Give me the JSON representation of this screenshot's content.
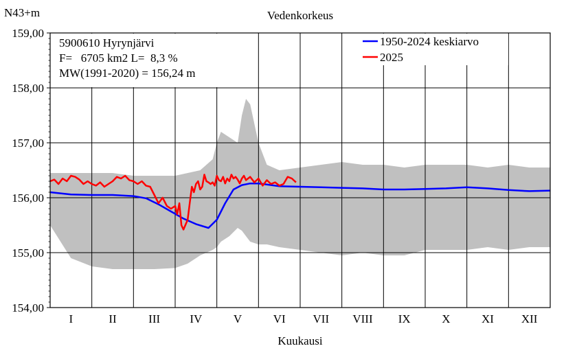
{
  "chart_data": {
    "type": "line",
    "title": "Vedenkorkeus",
    "ylabel": "N43+m",
    "xlabel": "Kuukausi",
    "ylim": [
      154,
      159
    ],
    "yticks": [
      154,
      155,
      156,
      157,
      158,
      159
    ],
    "ytick_labels": [
      "154,00",
      "155,00",
      "156,00",
      "157,00",
      "158,00",
      "159,00"
    ],
    "x_unit": "month",
    "xlim": [
      0,
      12
    ],
    "categories": [
      "I",
      "II",
      "III",
      "IV",
      "V",
      "VI",
      "VII",
      "VIII",
      "IX",
      "X",
      "XI",
      "XII"
    ],
    "grid": true,
    "info_lines": [
      "5900610 Hyrynjärvi",
      "F=   6705 km2 L=  8,3 %",
      "MW(1991-2020) = 156,24 m"
    ],
    "legend_position": "top-right",
    "colors": {
      "mean": "#0000ff",
      "current": "#ff0000",
      "range": "#c0c0c0"
    },
    "range_band": {
      "name": "",
      "x": [
        0.0,
        0.5,
        1.0,
        1.5,
        2.0,
        2.5,
        3.0,
        3.3,
        3.6,
        3.9,
        4.0,
        4.1,
        4.3,
        4.5,
        4.6,
        4.7,
        4.8,
        5.0,
        5.2,
        5.5,
        6.0,
        6.5,
        7.0,
        7.5,
        8.0,
        8.5,
        9.0,
        9.5,
        10.0,
        10.5,
        11.0,
        11.5,
        12.0
      ],
      "upper": [
        156.45,
        156.45,
        156.45,
        156.45,
        156.4,
        156.4,
        156.4,
        156.45,
        156.5,
        156.7,
        157.0,
        157.2,
        157.1,
        157.0,
        157.5,
        157.8,
        157.7,
        157.0,
        156.6,
        156.5,
        156.55,
        156.6,
        156.65,
        156.6,
        156.6,
        156.55,
        156.6,
        156.6,
        156.6,
        156.55,
        156.6,
        156.55,
        156.55
      ],
      "lower": [
        155.5,
        154.9,
        154.75,
        154.7,
        154.7,
        154.7,
        154.72,
        154.8,
        154.95,
        155.05,
        155.1,
        155.2,
        155.3,
        155.45,
        155.4,
        155.3,
        155.2,
        155.15,
        155.15,
        155.1,
        155.05,
        155.0,
        154.95,
        155.0,
        154.95,
        154.95,
        155.05,
        155.05,
        155.05,
        155.1,
        155.05,
        155.1,
        155.1
      ]
    },
    "series": [
      {
        "name": "1950-2024 keskiarvo",
        "x": [
          0.0,
          0.5,
          1.0,
          1.5,
          2.0,
          2.3,
          2.6,
          2.9,
          3.2,
          3.5,
          3.8,
          4.0,
          4.2,
          4.4,
          4.6,
          4.8,
          5.0,
          5.2,
          5.5,
          6.0,
          6.5,
          7.0,
          7.5,
          8.0,
          8.5,
          9.0,
          9.5,
          10.0,
          10.5,
          11.0,
          11.5,
          12.0
        ],
        "values": [
          156.1,
          156.06,
          156.05,
          156.05,
          156.03,
          155.99,
          155.88,
          155.75,
          155.62,
          155.52,
          155.45,
          155.6,
          155.9,
          156.15,
          156.23,
          156.26,
          156.26,
          156.24,
          156.21,
          156.2,
          156.19,
          156.18,
          156.17,
          156.15,
          156.15,
          156.16,
          156.17,
          156.19,
          156.17,
          156.14,
          156.12,
          156.13
        ]
      },
      {
        "name": "2025",
        "x": [
          0.0,
          0.1,
          0.2,
          0.3,
          0.4,
          0.5,
          0.6,
          0.7,
          0.8,
          0.9,
          1.0,
          1.1,
          1.2,
          1.3,
          1.4,
          1.5,
          1.6,
          1.7,
          1.8,
          1.9,
          2.0,
          2.1,
          2.2,
          2.3,
          2.4,
          2.5,
          2.6,
          2.7,
          2.8,
          2.9,
          3.0,
          3.05,
          3.1,
          3.15,
          3.2,
          3.3,
          3.35,
          3.4,
          3.45,
          3.5,
          3.55,
          3.6,
          3.65,
          3.7,
          3.75,
          3.8,
          3.85,
          3.9,
          3.95,
          4.0,
          4.05,
          4.1,
          4.15,
          4.2,
          4.25,
          4.3,
          4.35,
          4.4,
          4.45,
          4.5,
          4.55,
          4.6,
          4.65,
          4.7,
          4.8,
          4.9,
          5.0,
          5.1,
          5.2,
          5.3,
          5.4,
          5.5,
          5.6,
          5.7,
          5.8,
          5.9
        ],
        "values": [
          156.3,
          156.33,
          156.25,
          156.35,
          156.3,
          156.4,
          156.38,
          156.33,
          156.25,
          156.3,
          156.25,
          156.22,
          156.28,
          156.2,
          156.25,
          156.3,
          156.38,
          156.35,
          156.4,
          156.32,
          156.3,
          156.25,
          156.3,
          156.22,
          156.2,
          156.05,
          155.9,
          156.0,
          155.85,
          155.8,
          155.85,
          155.7,
          155.9,
          155.5,
          155.42,
          155.6,
          155.9,
          156.2,
          156.1,
          156.25,
          156.3,
          156.15,
          156.2,
          156.42,
          156.3,
          156.28,
          156.25,
          156.28,
          156.22,
          156.4,
          156.32,
          156.3,
          156.38,
          156.26,
          156.35,
          156.3,
          156.42,
          156.35,
          156.38,
          156.33,
          156.26,
          156.35,
          156.4,
          156.32,
          156.38,
          156.28,
          156.35,
          156.22,
          156.32,
          156.25,
          156.28,
          156.22,
          156.25,
          156.38,
          156.35,
          156.28
        ]
      }
    ]
  }
}
